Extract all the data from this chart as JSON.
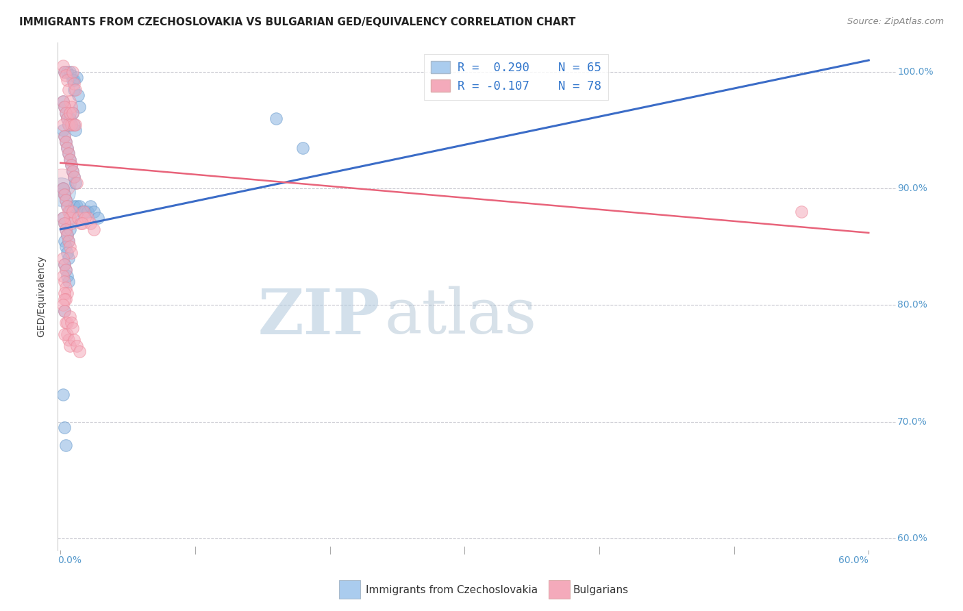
{
  "title": "IMMIGRANTS FROM CZECHOSLOVAKIA VS BULGARIAN GED/EQUIVALENCY CORRELATION CHART",
  "source": "Source: ZipAtlas.com",
  "ylabel": "GED/Equivalency",
  "xlim": [
    -0.002,
    0.62
  ],
  "ylim": [
    0.59,
    1.025
  ],
  "xtick_vals": [
    0.0,
    0.1,
    0.2,
    0.3,
    0.4,
    0.5,
    0.6
  ],
  "xtick_labels": [
    "0.0%",
    "",
    "",
    "",
    "",
    "",
    "60.0%"
  ],
  "xtick_minor_vals": [
    0.1,
    0.2,
    0.3,
    0.4,
    0.5
  ],
  "ytick_vals": [
    0.6,
    0.7,
    0.8,
    0.9,
    1.0
  ],
  "ytick_labels_left": [
    "",
    "",
    "",
    "",
    ""
  ],
  "ytick_labels_right": [
    "60.0%",
    "70.0%",
    "80.0%",
    "90.0%",
    "100.0%"
  ],
  "blue_color": "#89B4E0",
  "blue_edge_color": "#6699CC",
  "pink_color": "#F4AABB",
  "pink_edge_color": "#EE8899",
  "blue_line_color": "#3B6CC7",
  "pink_line_color": "#E8637A",
  "blue_line_y0": 0.865,
  "blue_line_y1": 1.01,
  "pink_line_y0": 0.922,
  "pink_line_y1": 0.862,
  "legend1_r": "R =  0.290",
  "legend1_n": "N = 65",
  "legend2_r": "R = -0.107",
  "legend2_n": "N = 78",
  "legend_blue_color": "#AACCEE",
  "legend_pink_color": "#F4AABB",
  "watermark_zip_color": "#B8CEE0",
  "watermark_atlas_color": "#AABFD0",
  "bottom_legend_blue": "Immigrants from Czechoslovakia",
  "bottom_legend_pink": "Bulgarians",
  "blue_scatter_x": [
    0.003,
    0.005,
    0.007,
    0.008,
    0.009,
    0.01,
    0.01,
    0.012,
    0.013,
    0.014,
    0.002,
    0.003,
    0.004,
    0.005,
    0.006,
    0.007,
    0.008,
    0.009,
    0.01,
    0.011,
    0.002,
    0.003,
    0.004,
    0.005,
    0.006,
    0.007,
    0.008,
    0.009,
    0.01,
    0.011,
    0.002,
    0.003,
    0.004,
    0.005,
    0.007,
    0.009,
    0.01,
    0.012,
    0.014,
    0.016,
    0.002,
    0.003,
    0.004,
    0.005,
    0.006,
    0.007,
    0.003,
    0.004,
    0.005,
    0.006,
    0.018,
    0.02,
    0.022,
    0.025,
    0.028,
    0.16,
    0.18,
    0.003,
    0.004,
    0.005,
    0.003,
    0.002,
    0.003,
    0.004,
    0.006
  ],
  "blue_scatter_y": [
    1.0,
    1.0,
    1.0,
    0.997,
    0.993,
    0.993,
    0.985,
    0.995,
    0.98,
    0.97,
    0.975,
    0.97,
    0.965,
    0.96,
    0.955,
    0.96,
    0.955,
    0.965,
    0.955,
    0.95,
    0.95,
    0.945,
    0.94,
    0.935,
    0.93,
    0.925,
    0.92,
    0.915,
    0.91,
    0.905,
    0.9,
    0.895,
    0.89,
    0.885,
    0.88,
    0.875,
    0.885,
    0.885,
    0.885,
    0.88,
    0.875,
    0.87,
    0.865,
    0.86,
    0.855,
    0.865,
    0.855,
    0.85,
    0.845,
    0.84,
    0.88,
    0.88,
    0.885,
    0.88,
    0.875,
    0.96,
    0.935,
    0.835,
    0.83,
    0.825,
    0.795,
    0.723,
    0.695,
    0.68,
    0.82
  ],
  "pink_scatter_x": [
    0.002,
    0.003,
    0.004,
    0.005,
    0.006,
    0.007,
    0.008,
    0.009,
    0.01,
    0.011,
    0.002,
    0.003,
    0.004,
    0.005,
    0.006,
    0.007,
    0.008,
    0.009,
    0.01,
    0.011,
    0.002,
    0.003,
    0.004,
    0.005,
    0.006,
    0.007,
    0.008,
    0.009,
    0.01,
    0.012,
    0.002,
    0.003,
    0.004,
    0.005,
    0.006,
    0.007,
    0.008,
    0.009,
    0.013,
    0.015,
    0.002,
    0.003,
    0.004,
    0.005,
    0.006,
    0.007,
    0.008,
    0.002,
    0.003,
    0.004,
    0.017,
    0.02,
    0.022,
    0.025,
    0.018,
    0.016,
    0.002,
    0.003,
    0.004,
    0.005,
    0.003,
    0.004,
    0.55,
    0.003,
    0.002,
    0.003,
    0.004,
    0.005,
    0.006,
    0.007,
    0.003,
    0.005,
    0.007,
    0.008,
    0.009,
    0.01,
    0.012,
    0.014
  ],
  "pink_scatter_y": [
    1.005,
    1.0,
    0.997,
    0.993,
    0.985,
    0.975,
    0.97,
    1.0,
    0.99,
    0.985,
    0.975,
    0.97,
    0.965,
    0.96,
    0.955,
    0.965,
    0.955,
    0.965,
    0.955,
    0.955,
    0.955,
    0.945,
    0.94,
    0.935,
    0.93,
    0.925,
    0.92,
    0.915,
    0.91,
    0.905,
    0.9,
    0.895,
    0.89,
    0.885,
    0.88,
    0.875,
    0.87,
    0.88,
    0.875,
    0.87,
    0.875,
    0.87,
    0.865,
    0.86,
    0.855,
    0.85,
    0.845,
    0.84,
    0.835,
    0.83,
    0.88,
    0.875,
    0.87,
    0.865,
    0.875,
    0.87,
    0.825,
    0.82,
    0.815,
    0.81,
    0.81,
    0.805,
    0.88,
    0.805,
    0.8,
    0.795,
    0.785,
    0.775,
    0.77,
    0.765,
    0.775,
    0.785,
    0.79,
    0.785,
    0.78,
    0.77,
    0.765,
    0.76
  ]
}
